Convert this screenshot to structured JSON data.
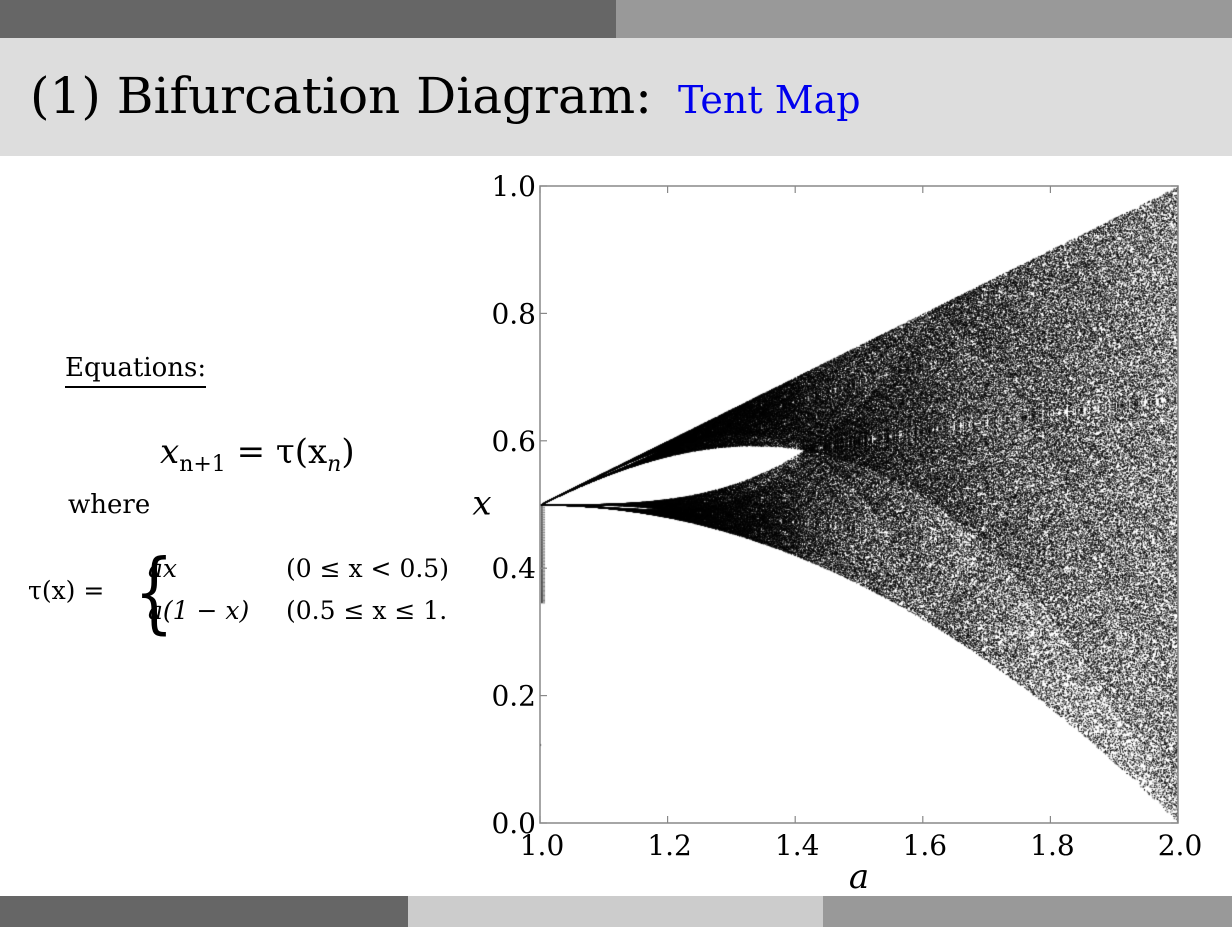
{
  "header": {
    "title": "(1) Bifurcation Diagram:",
    "subtitle": "Tent Map"
  },
  "equations": {
    "heading": "Equations:",
    "main_lhs": "x",
    "main_lhs_sub": "n+1",
    "main_rhs": "= τ(x",
    "main_rhs_sub": "n",
    "main_close": ")",
    "where": "where",
    "piece_lhs": "τ(x) =",
    "case1_expr": "ax",
    "case1_cond": "(0 ≤ x < 0.5)",
    "case2_expr": "a(1 − x)",
    "case2_cond": "(0.5 ≤ x ≤ 1."
  },
  "chart_data": {
    "type": "scatter",
    "title": "",
    "xlabel": "a",
    "ylabel": "x",
    "xlim": [
      1.0,
      2.0
    ],
    "ylim": [
      0.0,
      1.0
    ],
    "x_ticks": [
      "1.0",
      "1.2",
      "1.4",
      "1.6",
      "1.8",
      "2.0"
    ],
    "y_ticks": [
      "0.0",
      "0.2",
      "0.4",
      "0.6",
      "0.8",
      "1.0"
    ],
    "grid": false,
    "point_color": "#000000",
    "series": [
      {
        "description_of_rule": "iterates of tent map x_{n+1}=tau(x_n) for each a",
        "a_min": 1.0,
        "a_max": 2.0
      }
    ]
  },
  "colors": {
    "top_bar_dark": "#666666",
    "top_bar_light": "#999999",
    "title_band": "#dddddd",
    "accent": "#0000ee"
  }
}
